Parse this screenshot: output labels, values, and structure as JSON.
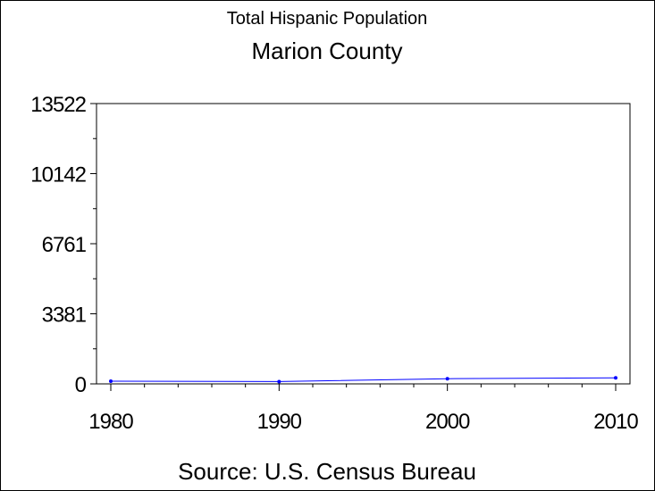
{
  "chart_data": {
    "type": "line",
    "title": "Total Hispanic Population",
    "subtitle": "Marion County",
    "source": "Source: U.S. Census Bureau",
    "xlabel": "",
    "ylabel": "",
    "x": [
      1980,
      1990,
      2000,
      2010
    ],
    "x_ticks": [
      "1980",
      "1990",
      "2000",
      "2010"
    ],
    "y_ticks": [
      "0",
      "3381",
      "6761",
      "10142",
      "13522"
    ],
    "xlim": [
      1980,
      2010
    ],
    "ylim": [
      0,
      13522
    ],
    "series": [
      {
        "values": [
          130,
          110,
          250,
          290
        ],
        "color": "#0000ff"
      }
    ],
    "grid": false,
    "legend": "none"
  }
}
